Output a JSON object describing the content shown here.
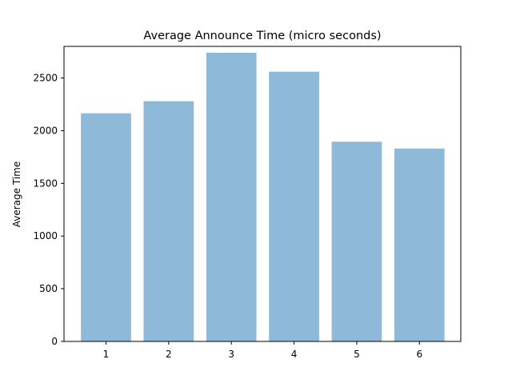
{
  "chart_data": {
    "type": "bar",
    "title": "Average Announce Time (micro seconds)",
    "xlabel": "",
    "ylabel": "Average Time",
    "categories": [
      "1",
      "2",
      "3",
      "4",
      "5",
      "6"
    ],
    "values": [
      2165,
      2280,
      2740,
      2560,
      1895,
      1830
    ],
    "ylim": [
      0,
      2800
    ],
    "yticks": [
      0,
      500,
      1000,
      1500,
      2000,
      2500
    ],
    "bar_color": "#8fb9d9",
    "grid": false,
    "legend": "none"
  }
}
